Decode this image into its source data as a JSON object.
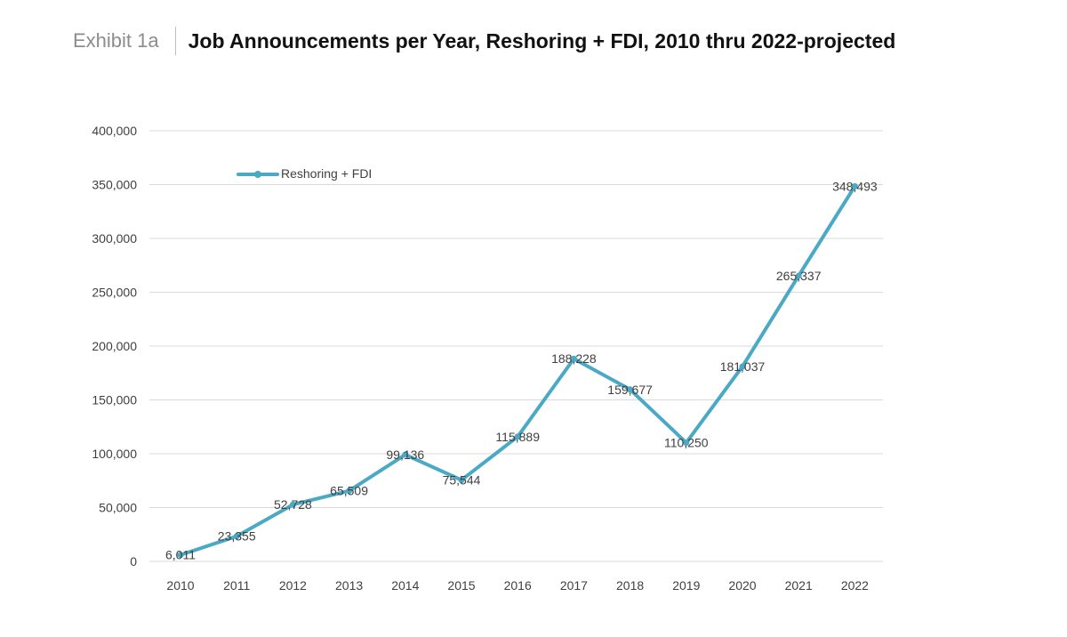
{
  "header": {
    "exhibit": "Exhibit 1a",
    "title": "Job Announcements per Year, Reshoring + FDI, 2010 thru 2022-projected"
  },
  "colors": {
    "series": "#4aa9c4",
    "grid": "#d9d9d9",
    "text": "#404040"
  },
  "chart_data": {
    "type": "line",
    "title": "Job Announcements per Year, Reshoring + FDI, 2010 thru 2022-projected",
    "xlabel": "",
    "ylabel": "",
    "x": [
      "2010",
      "2011",
      "2012",
      "2013",
      "2014",
      "2015",
      "2016",
      "2017",
      "2018",
      "2019",
      "2020",
      "2021",
      "2022"
    ],
    "series": [
      {
        "name": "Reshoring + FDI",
        "values": [
          6011,
          23355,
          52728,
          65509,
          99136,
          75544,
          115889,
          188228,
          159677,
          110250,
          181037,
          265337,
          348493
        ],
        "labels": [
          "6,011",
          "23,355",
          "52,728",
          "65,509",
          "99,136",
          "75,544",
          "115,889",
          "188,228",
          "159,677",
          "110,250",
          "181,037",
          "265,337",
          "348,493"
        ]
      }
    ],
    "ylim": [
      0,
      400000
    ],
    "yticks": [
      0,
      50000,
      100000,
      150000,
      200000,
      250000,
      300000,
      350000,
      400000
    ],
    "ytick_labels": [
      "0",
      "50,000",
      "100,000",
      "150,000",
      "200,000",
      "250,000",
      "300,000",
      "350,000",
      "400,000"
    ],
    "grid": true,
    "legend": "top-left"
  }
}
